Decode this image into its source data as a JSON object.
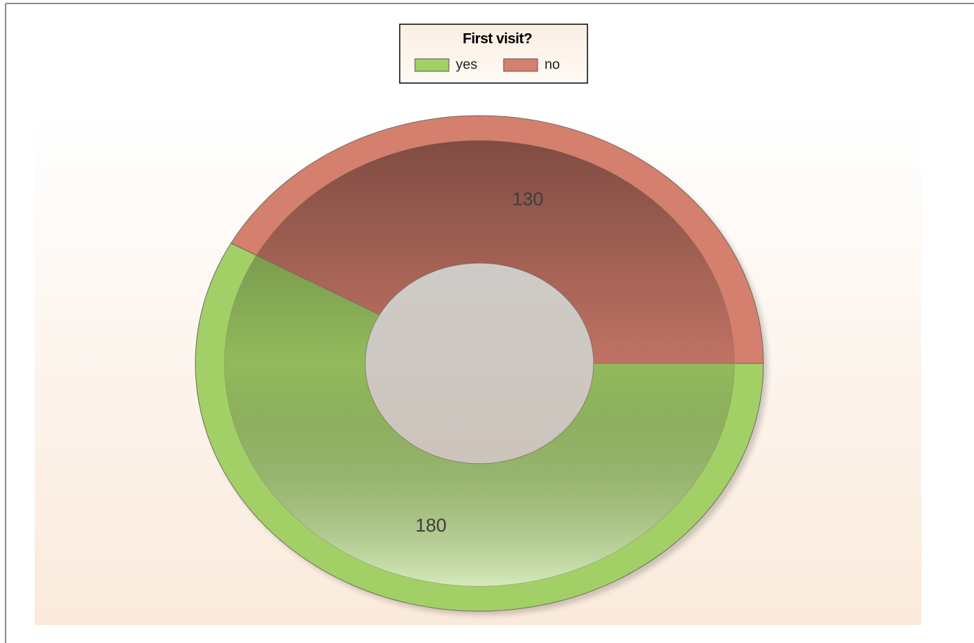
{
  "chart_data": {
    "type": "donut",
    "title": "First visit?",
    "categories": [
      "yes",
      "no"
    ],
    "values": [
      180,
      130
    ],
    "colors": [
      "#a3cf67",
      "#d57f6e"
    ],
    "legend": "top"
  }
}
